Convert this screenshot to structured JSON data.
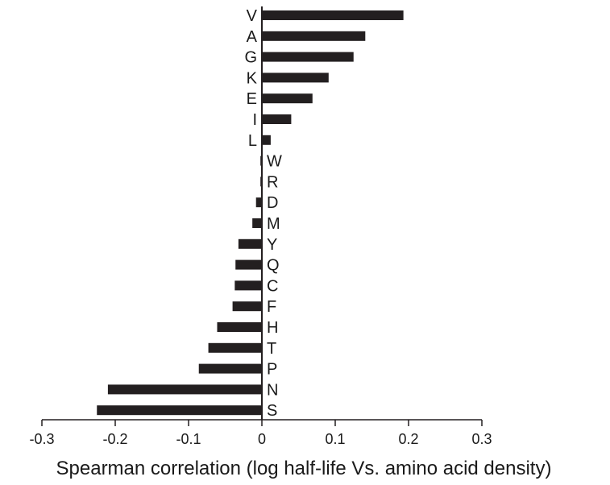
{
  "chart_data": {
    "type": "bar",
    "orientation": "horizontal",
    "categories": [
      "V",
      "A",
      "G",
      "K",
      "E",
      "I",
      "L",
      "W",
      "R",
      "D",
      "M",
      "Y",
      "Q",
      "C",
      "F",
      "H",
      "T",
      "P",
      "N",
      "S"
    ],
    "values": [
      0.193,
      0.141,
      0.125,
      0.091,
      0.069,
      0.04,
      0.012,
      -0.002,
      -0.002,
      -0.008,
      -0.013,
      -0.032,
      -0.036,
      -0.037,
      -0.04,
      -0.061,
      -0.073,
      -0.086,
      -0.21,
      -0.225
    ],
    "title": "",
    "xlabel": "Spearman correlation (log half-life Vs. amino acid density)",
    "ylabel": "",
    "xlim": [
      -0.3,
      0.3
    ],
    "xticks": [
      -0.3,
      -0.2,
      -0.1,
      0,
      0.1,
      0.2,
      0.3
    ],
    "xtick_labels": [
      "-0.3",
      "-0.2",
      "-0.1",
      "0",
      "0.1",
      "0.2",
      "0.3"
    ],
    "grid": false,
    "legend": "none",
    "bar_color": "#231f20"
  }
}
